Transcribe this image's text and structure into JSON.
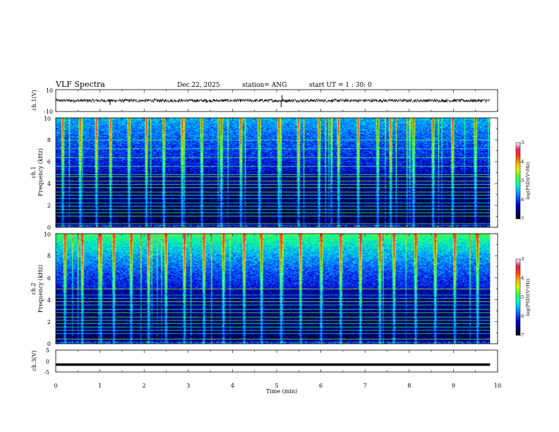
{
  "header": {
    "title": "VLF Spectra",
    "date": "Dec.22, 2025",
    "station": "station= ANG",
    "start_ut": "start UT =  1 : 30: 0"
  },
  "chart_data": [
    {
      "type": "line",
      "name": "ch1-waveform",
      "ylabel": "ch.1(V)",
      "ylim": [
        -10,
        10
      ],
      "yticks": [
        "10",
        "-10"
      ],
      "xlim": [
        0,
        10
      ],
      "trace_end": 9.83,
      "baseline": 0,
      "noise_amplitude": 1.5,
      "spikes": [
        {
          "t": 1.23,
          "v": -4
        },
        {
          "t": 3.4,
          "v": -2
        },
        {
          "t": 5.1,
          "v": -6
        },
        {
          "t": 5.12,
          "v": 5
        }
      ]
    },
    {
      "type": "heatmap",
      "name": "ch1-spectrogram",
      "ylabel": "ch.1\nFrequency (kHz)",
      "ylabel_lines": [
        "ch.1",
        "Frequency (kHz)"
      ],
      "ylim": [
        0,
        10
      ],
      "yticks": [
        "0",
        "2",
        "4",
        "6",
        "8",
        "10"
      ],
      "xlim": [
        0,
        10
      ],
      "data_end": 9.83,
      "zlabel": "log(PSD)(V²/Hz)",
      "zlim": [
        -7,
        -3
      ],
      "zticks": [
        "-3",
        "-4",
        "-5",
        "-6",
        "-7"
      ],
      "tones_khz": [
        0.3,
        1.0,
        1.3,
        1.6,
        1.9,
        2.2,
        2.6,
        2.9,
        3.2,
        3.6,
        3.9,
        4.2,
        4.6,
        4.8,
        5.6,
        6.4,
        7.2,
        8.0
      ],
      "impulses_min": [
        0.15,
        0.55,
        0.9,
        1.22,
        1.65,
        2.05,
        2.45,
        2.85,
        3.3,
        3.75,
        4.2,
        4.6,
        5.05,
        5.5,
        5.95,
        6.4,
        6.85,
        7.3,
        7.6,
        8.1,
        8.55,
        9.0,
        9.5
      ]
    },
    {
      "type": "heatmap",
      "name": "ch2-spectrogram",
      "ylabel": "ch.2\nFrequency (kHz)",
      "ylabel_lines": [
        "ch.2",
        "Frequency (kHz)"
      ],
      "ylim": [
        0,
        10
      ],
      "yticks": [
        "0",
        "2",
        "4",
        "6",
        "8",
        "10"
      ],
      "xlim": [
        0,
        10
      ],
      "data_end": 9.83,
      "zlabel": "log(PSD)(V²/Hz)",
      "zlim": [
        -7,
        -3
      ],
      "zticks": [
        "-3",
        "-4",
        "-5",
        "-6",
        "-7"
      ],
      "tones_khz": [
        0.4,
        0.9,
        1.2,
        1.5,
        1.8,
        2.1,
        2.4,
        2.8,
        3.1,
        3.5,
        3.8,
        4.1,
        4.4,
        5.0
      ],
      "impulses_min": [
        0.2,
        0.6,
        1.0,
        1.3,
        1.7,
        2.1,
        2.5,
        2.9,
        3.35,
        3.8,
        4.25,
        4.65,
        5.1,
        5.55,
        6.0,
        6.45,
        6.9,
        7.35,
        7.65,
        8.15,
        8.6,
        9.05,
        9.55
      ]
    },
    {
      "type": "line",
      "name": "ch3-trace",
      "ylabel": "ch.3(V)",
      "ylim": [
        -5,
        5
      ],
      "yticks": [
        "5",
        "0",
        "-5"
      ],
      "xlim": [
        0,
        10
      ],
      "trace_end": 9.83,
      "baseline": -1.6,
      "xlabel": "Time (min)",
      "xticks": [
        "0",
        "1",
        "2",
        "3",
        "4",
        "5",
        "6",
        "7",
        "8",
        "9",
        "10"
      ]
    }
  ],
  "colormap": [
    "#000000",
    "#00006e",
    "#0000cd",
    "#0a50ff",
    "#00b4ff",
    "#00ffb4",
    "#3cff3c",
    "#d2ff00",
    "#ffb400",
    "#ff3c00",
    "#e61e6e",
    "#ffffff"
  ]
}
